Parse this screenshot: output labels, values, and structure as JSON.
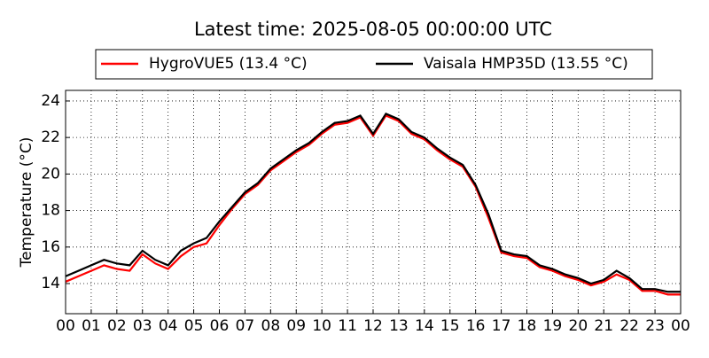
{
  "chart_data": {
    "type": "line",
    "title": "Latest time: 2025-08-05 00:00:00 UTC",
    "y_label": "Temperature (°C)",
    "x": [
      0,
      0.5,
      1,
      1.5,
      2,
      2.5,
      3,
      3.5,
      4,
      4.5,
      5,
      5.5,
      6,
      6.5,
      7,
      7.5,
      8,
      8.5,
      9,
      9.5,
      10,
      10.5,
      11,
      11.5,
      12,
      12.5,
      13,
      13.5,
      14,
      14.5,
      15,
      15.5,
      16,
      16.5,
      17,
      17.5,
      18,
      18.5,
      19,
      19.5,
      20,
      20.5,
      21,
      21.5,
      22,
      22.5,
      23,
      23.5,
      24
    ],
    "series": [
      {
        "name": "HygroVUE5 (13.4 °C)",
        "color": "#ff0000",
        "values": [
          14.1,
          14.4,
          14.7,
          15.0,
          14.8,
          14.7,
          15.6,
          15.1,
          14.8,
          15.5,
          16.0,
          16.2,
          17.2,
          18.1,
          18.9,
          19.4,
          20.2,
          20.7,
          21.2,
          21.6,
          22.2,
          22.7,
          22.8,
          23.1,
          22.1,
          23.2,
          22.9,
          22.2,
          21.9,
          21.3,
          20.8,
          20.4,
          19.3,
          17.6,
          15.7,
          15.5,
          15.4,
          14.9,
          14.7,
          14.4,
          14.2,
          13.9,
          14.1,
          14.5,
          14.2,
          13.6,
          13.6,
          13.4,
          13.4
        ]
      },
      {
        "name": "Vaisala HMP35D (13.55 °C)",
        "color": "#000000",
        "values": [
          14.4,
          14.7,
          15.0,
          15.3,
          15.1,
          15.0,
          15.8,
          15.3,
          15.0,
          15.8,
          16.2,
          16.5,
          17.4,
          18.2,
          19.0,
          19.5,
          20.3,
          20.8,
          21.3,
          21.7,
          22.3,
          22.8,
          22.9,
          23.2,
          22.2,
          23.3,
          23.0,
          22.3,
          22.0,
          21.4,
          20.9,
          20.5,
          19.4,
          17.8,
          15.8,
          15.6,
          15.5,
          15.0,
          14.8,
          14.5,
          14.3,
          14.0,
          14.2,
          14.7,
          14.3,
          13.7,
          13.7,
          13.55,
          13.55
        ]
      }
    ],
    "xlim": [
      0,
      24
    ],
    "xticks": [
      {
        "value": 0,
        "label": "00"
      },
      {
        "value": 1,
        "label": "01"
      },
      {
        "value": 2,
        "label": "02"
      },
      {
        "value": 3,
        "label": "03"
      },
      {
        "value": 4,
        "label": "04"
      },
      {
        "value": 5,
        "label": "05"
      },
      {
        "value": 6,
        "label": "06"
      },
      {
        "value": 7,
        "label": "07"
      },
      {
        "value": 8,
        "label": "08"
      },
      {
        "value": 9,
        "label": "09"
      },
      {
        "value": 10,
        "label": "10"
      },
      {
        "value": 11,
        "label": "11"
      },
      {
        "value": 12,
        "label": "12"
      },
      {
        "value": 13,
        "label": "13"
      },
      {
        "value": 14,
        "label": "14"
      },
      {
        "value": 15,
        "label": "15"
      },
      {
        "value": 16,
        "label": "16"
      },
      {
        "value": 17,
        "label": "17"
      },
      {
        "value": 18,
        "label": "18"
      },
      {
        "value": 19,
        "label": "19"
      },
      {
        "value": 20,
        "label": "20"
      },
      {
        "value": 21,
        "label": "21"
      },
      {
        "value": 22,
        "label": "22"
      },
      {
        "value": 23,
        "label": "23"
      },
      {
        "value": 24,
        "label": "00"
      }
    ],
    "ylim": [
      12.35,
      24.58
    ],
    "yticks": [
      14,
      16,
      18,
      20,
      22,
      24
    ],
    "grid": true,
    "legend": "top"
  }
}
